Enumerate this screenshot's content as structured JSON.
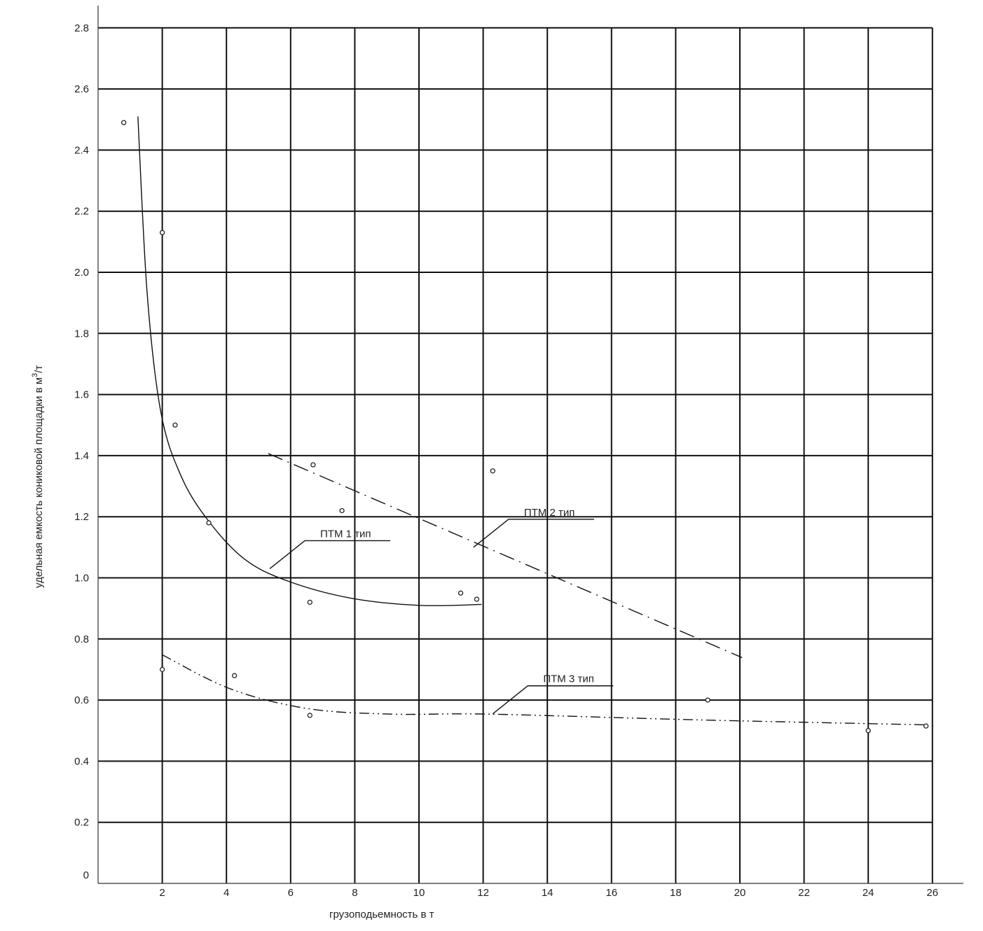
{
  "chart_data": {
    "type": "scatter",
    "title": "",
    "xlabel": "грузоподьемность в т",
    "ylabel_text": "удельная емкость кониковой площадки в м",
    "ylabel_sup": "3",
    "ylabel_tail": "/т",
    "xlim": [
      0,
      26
    ],
    "ylim": [
      0,
      2.8
    ],
    "grid": true,
    "x_ticks": [
      "2",
      "4",
      "6",
      "8",
      "10",
      "12",
      "14",
      "16",
      "18",
      "20",
      "22",
      "24",
      "26"
    ],
    "y_ticks": [
      "0",
      "0.2",
      "0.4",
      "0.6",
      "0.8",
      "1.0",
      "1.2",
      "1.4",
      "1.6",
      "1.8",
      "2.0",
      "2.2",
      "2.4",
      "2.6",
      "2.8"
    ],
    "points": [
      [
        0.8,
        2.49
      ],
      [
        2.0,
        2.13
      ],
      [
        2.4,
        1.5
      ],
      [
        3.45,
        1.18
      ],
      [
        4.25,
        0.68
      ],
      [
        2.0,
        0.7
      ],
      [
        6.6,
        0.92
      ],
      [
        6.7,
        1.37
      ],
      [
        7.6,
        1.22
      ],
      [
        11.3,
        0.95
      ],
      [
        11.8,
        0.93
      ],
      [
        12.3,
        1.35
      ],
      [
        6.6,
        0.55
      ],
      [
        19.0,
        0.6
      ],
      [
        24.0,
        0.5
      ],
      [
        25.8,
        0.515
      ]
    ],
    "series": [
      {
        "name": "ПТМ 1 тип",
        "style": "solid",
        "x": [
          1.24,
          1.53,
          1.96,
          2.6,
          3.45,
          4.58,
          5.9,
          7.85,
          10.0,
          11.95
        ],
        "y": [
          2.51,
          1.93,
          1.54,
          1.33,
          1.185,
          1.06,
          0.99,
          0.934,
          0.91,
          0.913
        ],
        "label_anchor": [
          5.35,
          1.03
        ]
      },
      {
        "name": "ПТМ 2 тип",
        "style": "dash-dot",
        "x": [
          5.3,
          20.07
        ],
        "y": [
          1.407,
          0.739
        ],
        "label_anchor": [
          11.7,
          1.1
        ]
      },
      {
        "name": "ПТМ 3 тип",
        "style": "dash-dot-dot",
        "x": [
          2.0,
          4.14,
          6.54,
          9.16,
          12.2,
          18.76,
          25.8
        ],
        "y": [
          0.748,
          0.636,
          0.572,
          0.554,
          0.554,
          0.535,
          0.519
        ],
        "label_anchor": [
          12.3,
          0.555
        ]
      }
    ],
    "colors": {
      "line": "#111111",
      "grid": "#111111"
    }
  }
}
